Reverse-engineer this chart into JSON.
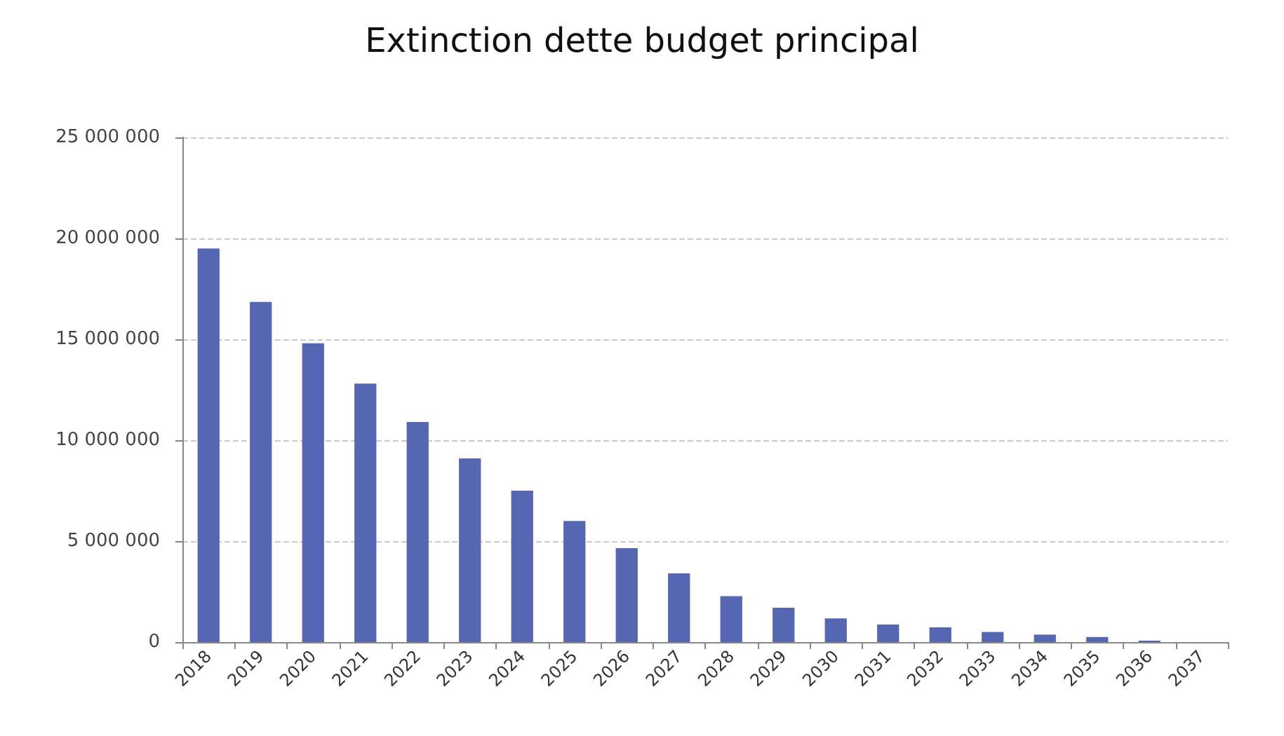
{
  "chart_data": {
    "type": "bar",
    "title": "Extinction dette budget principal",
    "categories": [
      "2018",
      "2019",
      "2020",
      "2021",
      "2022",
      "2023",
      "2024",
      "2025",
      "2026",
      "2027",
      "2028",
      "2029",
      "2030",
      "2031",
      "2032",
      "2033",
      "2034",
      "2035",
      "2036",
      "2037"
    ],
    "values": [
      19500000,
      16850000,
      14800000,
      12800000,
      10900000,
      9100000,
      7500000,
      6000000,
      4650000,
      3400000,
      2270000,
      1700000,
      1170000,
      870000,
      730000,
      500000,
      370000,
      250000,
      70000,
      0
    ],
    "color": "#5567b3",
    "ylim": [
      0,
      25000000
    ],
    "yticks": [
      {
        "value": 0,
        "label": "0"
      },
      {
        "value": 5000000,
        "label": "5 000 000"
      },
      {
        "value": 10000000,
        "label": "10 000 000"
      },
      {
        "value": 15000000,
        "label": "15 000 000"
      },
      {
        "value": 20000000,
        "label": "20 000 000"
      },
      {
        "value": 25000000,
        "label": "25 000 000"
      }
    ],
    "grid": "y"
  }
}
